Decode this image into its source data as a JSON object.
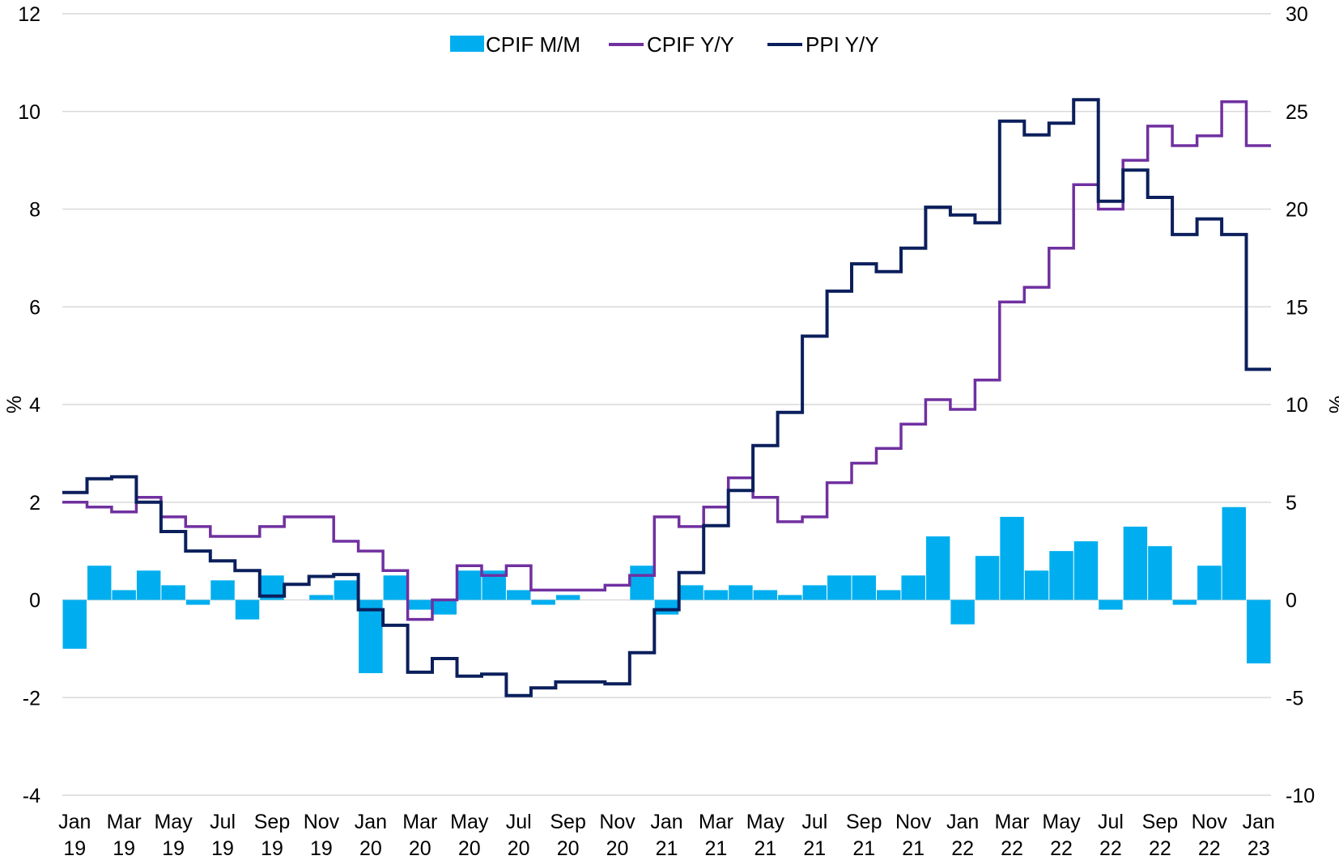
{
  "chart_data": {
    "type": "bar+step-line",
    "title": "",
    "y_left": {
      "label": "%",
      "min": -4,
      "max": 12,
      "ticks": [
        "-4",
        "-2",
        "0",
        "2",
        "4",
        "6",
        "8",
        "10",
        "12"
      ]
    },
    "y_right": {
      "label": "%",
      "min": -10,
      "max": 30,
      "ticks": [
        "-10",
        "-5",
        "0",
        "5",
        "10",
        "15",
        "20",
        "25",
        "30"
      ]
    },
    "gridlines": true,
    "legend_position": "top-center",
    "x_tick_labels": [
      {
        "month": "Jan",
        "year": "19"
      },
      {
        "month": "Mar",
        "year": "19"
      },
      {
        "month": "May",
        "year": "19"
      },
      {
        "month": "Jul",
        "year": "19"
      },
      {
        "month": "Sep",
        "year": "19"
      },
      {
        "month": "Nov",
        "year": "19"
      },
      {
        "month": "Jan",
        "year": "20"
      },
      {
        "month": "Mar",
        "year": "20"
      },
      {
        "month": "May",
        "year": "20"
      },
      {
        "month": "Jul",
        "year": "20"
      },
      {
        "month": "Sep",
        "year": "20"
      },
      {
        "month": "Nov",
        "year": "20"
      },
      {
        "month": "Jan",
        "year": "21"
      },
      {
        "month": "Mar",
        "year": "21"
      },
      {
        "month": "May",
        "year": "21"
      },
      {
        "month": "Jul",
        "year": "21"
      },
      {
        "month": "Sep",
        "year": "21"
      },
      {
        "month": "Nov",
        "year": "21"
      },
      {
        "month": "Jan",
        "year": "22"
      },
      {
        "month": "Mar",
        "year": "22"
      },
      {
        "month": "May",
        "year": "22"
      },
      {
        "month": "Jul",
        "year": "22"
      },
      {
        "month": "Sep",
        "year": "22"
      },
      {
        "month": "Nov",
        "year": "22"
      },
      {
        "month": "Jan",
        "year": "23"
      }
    ],
    "months": [
      "Jan 19",
      "Feb 19",
      "Mar 19",
      "Apr 19",
      "May 19",
      "Jun 19",
      "Jul 19",
      "Aug 19",
      "Sep 19",
      "Oct 19",
      "Nov 19",
      "Dec 19",
      "Jan 20",
      "Feb 20",
      "Mar 20",
      "Apr 20",
      "May 20",
      "Jun 20",
      "Jul 20",
      "Aug 20",
      "Sep 20",
      "Oct 20",
      "Nov 20",
      "Dec 20",
      "Jan 21",
      "Feb 21",
      "Mar 21",
      "Apr 21",
      "May 21",
      "Jun 21",
      "Jul 21",
      "Aug 21",
      "Sep 21",
      "Oct 21",
      "Nov 21",
      "Dec 21",
      "Jan 22",
      "Feb 22",
      "Mar 22",
      "Apr 22",
      "May 22",
      "Jun 22",
      "Jul 22",
      "Aug 22",
      "Sep 22",
      "Oct 22",
      "Nov 22",
      "Dec 22",
      "Jan 23"
    ],
    "series": [
      {
        "name": "CPIF M/M",
        "type": "bar",
        "axis": "left",
        "color": "#00AEEF",
        "values": [
          -1.0,
          0.7,
          0.2,
          0.6,
          0.3,
          -0.1,
          0.4,
          -0.4,
          0.5,
          0.0,
          0.1,
          0.4,
          -1.5,
          0.5,
          -0.2,
          -0.3,
          0.6,
          0.6,
          0.2,
          -0.1,
          0.1,
          0.0,
          0.0,
          0.7,
          -0.3,
          0.3,
          0.2,
          0.3,
          0.2,
          0.1,
          0.3,
          0.5,
          0.5,
          0.2,
          0.5,
          1.3,
          -0.5,
          0.9,
          1.7,
          0.6,
          1.0,
          1.2,
          -0.2,
          1.5,
          1.1,
          -0.1,
          0.7,
          1.9,
          -1.3
        ]
      },
      {
        "name": "CPIF Y/Y",
        "type": "line",
        "axis": "left",
        "color": "#7030A0",
        "values": [
          2.0,
          1.9,
          1.8,
          2.1,
          1.7,
          1.5,
          1.3,
          1.3,
          1.5,
          1.7,
          1.7,
          1.2,
          1.0,
          0.6,
          -0.4,
          0.0,
          0.7,
          0.5,
          0.7,
          0.2,
          0.2,
          0.2,
          0.3,
          0.5,
          1.7,
          1.5,
          1.9,
          2.5,
          2.1,
          1.6,
          1.7,
          2.4,
          2.8,
          3.1,
          3.6,
          4.1,
          3.9,
          4.5,
          6.1,
          6.4,
          7.2,
          8.5,
          8.0,
          9.0,
          9.7,
          9.3,
          9.5,
          10.2,
          9.3
        ]
      },
      {
        "name": "PPI Y/Y",
        "type": "line",
        "axis": "right",
        "color": "#0B1F5C",
        "values": [
          5.5,
          6.2,
          6.3,
          5.0,
          3.5,
          2.5,
          2.0,
          1.5,
          0.2,
          0.8,
          1.2,
          1.3,
          -0.5,
          -1.3,
          -3.7,
          -3.0,
          -3.9,
          -3.8,
          -4.9,
          -4.5,
          -4.2,
          -4.2,
          -4.3,
          -2.7,
          -0.5,
          1.4,
          3.8,
          5.6,
          7.9,
          9.6,
          13.5,
          15.8,
          17.2,
          16.8,
          18.0,
          20.1,
          19.7,
          19.3,
          24.5,
          23.8,
          24.4,
          25.6,
          20.4,
          22.0,
          20.6,
          18.7,
          19.5,
          18.7,
          11.8
        ]
      }
    ]
  }
}
